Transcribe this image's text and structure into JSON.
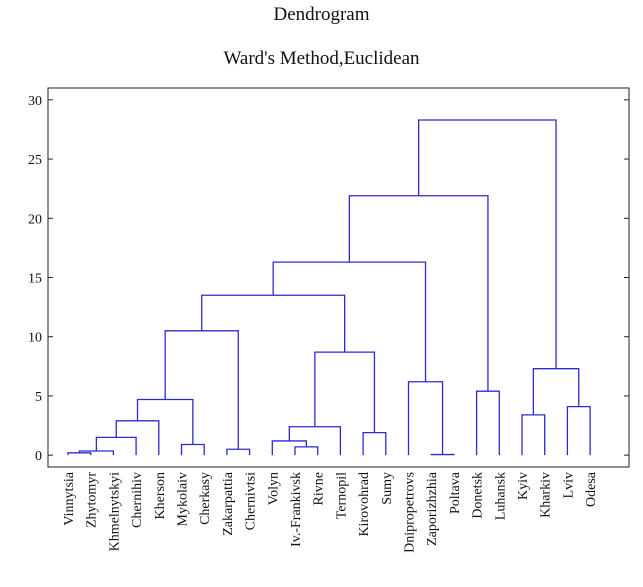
{
  "chart_data": {
    "type": "dendrogram",
    "title": "Dendrogram",
    "subtitle": "Ward's Method,Euclidean",
    "ylim": [
      -1,
      31
    ],
    "yticks": [
      0,
      5,
      10,
      15,
      20,
      25,
      30
    ],
    "leaves": [
      "Vinnytsia",
      "Zhytomyr",
      "Khmelnytskyi",
      "Chernihiv",
      "Kherson",
      "Mykolaiv",
      "Cherkasy",
      "Zakarpattia",
      "Chernivtsi",
      "Volyn",
      "Iv.-Frankivsk",
      "Rivne",
      "Ternopil",
      "Kirovohrad",
      "Sumy",
      "Dnipropetrovs",
      "Zaporizhzhia",
      "Poltava",
      "Donetsk",
      "Luhansk",
      "Kyiv",
      "Kharkiv",
      "Lviv",
      "Odesa"
    ],
    "merges": [
      {
        "a": 0,
        "b": 1,
        "height": 0.2
      },
      {
        "a": 24,
        "b": 2,
        "height": 0.35
      },
      {
        "a": 25,
        "b": 3,
        "height": 1.5
      },
      {
        "a": 26,
        "b": 4,
        "height": 2.9
      },
      {
        "a": 5,
        "b": 6,
        "height": 0.9
      },
      {
        "a": 27,
        "b": 28,
        "height": 4.7
      },
      {
        "a": 7,
        "b": 8,
        "height": 0.5
      },
      {
        "a": 29,
        "b": 30,
        "height": 10.5
      },
      {
        "a": 10,
        "b": 11,
        "height": 0.7
      },
      {
        "a": 9,
        "b": 32,
        "height": 1.2
      },
      {
        "a": 33,
        "b": 12,
        "height": 2.4
      },
      {
        "a": 13,
        "b": 14,
        "height": 1.9
      },
      {
        "a": 34,
        "b": 35,
        "height": 8.7
      },
      {
        "a": 31,
        "b": 36,
        "height": 13.5
      },
      {
        "a": 16,
        "b": 17,
        "height": 0.05
      },
      {
        "a": 15,
        "b": 38,
        "height": 6.2
      },
      {
        "a": 37,
        "b": 39,
        "height": 16.3
      },
      {
        "a": 18,
        "b": 19,
        "height": 5.4
      },
      {
        "a": 40,
        "b": 41,
        "height": 21.9
      },
      {
        "a": 20,
        "b": 21,
        "height": 3.4
      },
      {
        "a": 22,
        "b": 23,
        "height": 4.1
      },
      {
        "a": 43,
        "b": 44,
        "height": 7.3
      },
      {
        "a": 42,
        "b": 45,
        "height": 28.3
      }
    ],
    "line_color": "#2b2bd0",
    "grid": false
  }
}
